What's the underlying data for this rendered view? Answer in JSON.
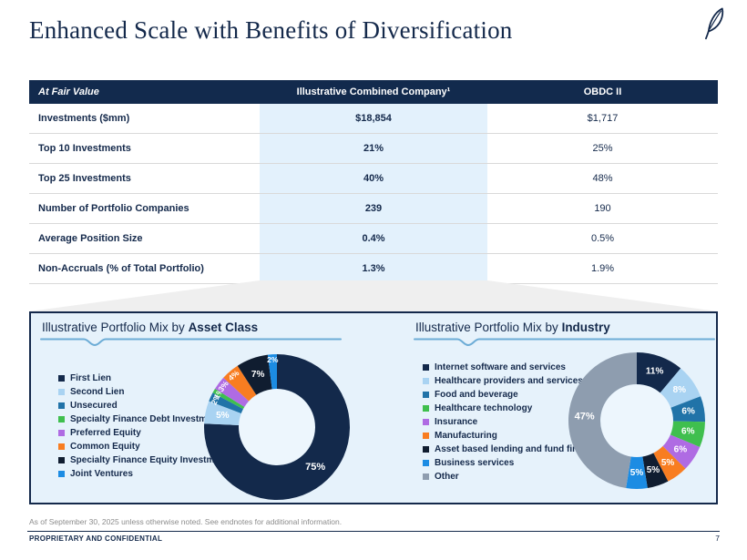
{
  "page": {
    "title": "Enhanced Scale with Benefits of Diversification",
    "footer_note": "As of September 30, 2025 unless otherwise noted. See endnotes for additional information.",
    "footer_label": "PROPRIETARY AND CONFIDENTIAL",
    "page_number": "7"
  },
  "table": {
    "header": {
      "col1": "At Fair Value",
      "col2": "Illustrative Combined Company¹",
      "col3": "OBDC II"
    },
    "rows": [
      {
        "label": "Investments ($mm)",
        "combined": "$18,854",
        "obdc": "$1,717"
      },
      {
        "label": "Top 10 Investments",
        "combined": "21%",
        "obdc": "25%"
      },
      {
        "label": "Top 25 Investments",
        "combined": "40%",
        "obdc": "48%"
      },
      {
        "label": "Number of Portfolio Companies",
        "combined": "239",
        "obdc": "190"
      },
      {
        "label": "Average Position Size",
        "combined": "0.4%",
        "obdc": "0.5%"
      },
      {
        "label": "Non-Accruals (% of Total Portfolio)",
        "combined": "1.3%",
        "obdc": "1.9%"
      }
    ]
  },
  "chart_data": [
    {
      "type": "donut",
      "title_prefix": "Illustrative Portfolio Mix by ",
      "title_bold": "Asset Class",
      "legend_position": "left",
      "slices": [
        {
          "label": "First Lien",
          "value": 75,
          "color": "#13294B"
        },
        {
          "label": "Second Lien",
          "value": 5,
          "color": "#A9D3F2"
        },
        {
          "label": "Unsecured",
          "value": 2,
          "color": "#2173A8"
        },
        {
          "label": "Specialty Finance Debt Investments",
          "value": 1,
          "color": "#3FBF4E"
        },
        {
          "label": "Preferred Equity",
          "value": 3,
          "color": "#AF6BE3"
        },
        {
          "label": "Common Equity",
          "value": 4,
          "color": "#F87D21"
        },
        {
          "label": "Specialty Finance Equity Investments",
          "value": 7,
          "color": "#101D30"
        },
        {
          "label": "Joint Ventures",
          "value": 2,
          "color": "#1C8CE3"
        }
      ]
    },
    {
      "type": "donut",
      "title_prefix": "Illustrative Portfolio Mix by ",
      "title_bold": "Industry",
      "legend_position": "left",
      "slices": [
        {
          "label": "Internet software and services",
          "value": 11,
          "color": "#13294B"
        },
        {
          "label": "Healthcare providers and services",
          "value": 8,
          "color": "#A9D3F2"
        },
        {
          "label": "Food and beverage",
          "value": 6,
          "color": "#2173A8"
        },
        {
          "label": "Healthcare technology",
          "value": 6,
          "color": "#3FBF4E"
        },
        {
          "label": "Insurance",
          "value": 6,
          "color": "#AF6BE3"
        },
        {
          "label": "Manufacturing",
          "value": 5,
          "color": "#F87D21"
        },
        {
          "label": "Asset based lending and fund finance",
          "value": 5,
          "color": "#101D30"
        },
        {
          "label": "Business services",
          "value": 5,
          "color": "#1C8CE3"
        },
        {
          "label": "Other",
          "value": 47,
          "color": "#8E9DAF"
        }
      ]
    }
  ],
  "colors": {
    "navy": "#14294B",
    "header_bg": "#122A4D",
    "highlight_column": "#E3F1FC",
    "panel_bg": "#E6F2FB",
    "funnel_gray": "#EFEFEF",
    "underline_blue": "#6CACD6",
    "row_border": "#D9D9D9",
    "note_gray": "#8C8C8C",
    "donut_hole": "#EDF6FD"
  }
}
